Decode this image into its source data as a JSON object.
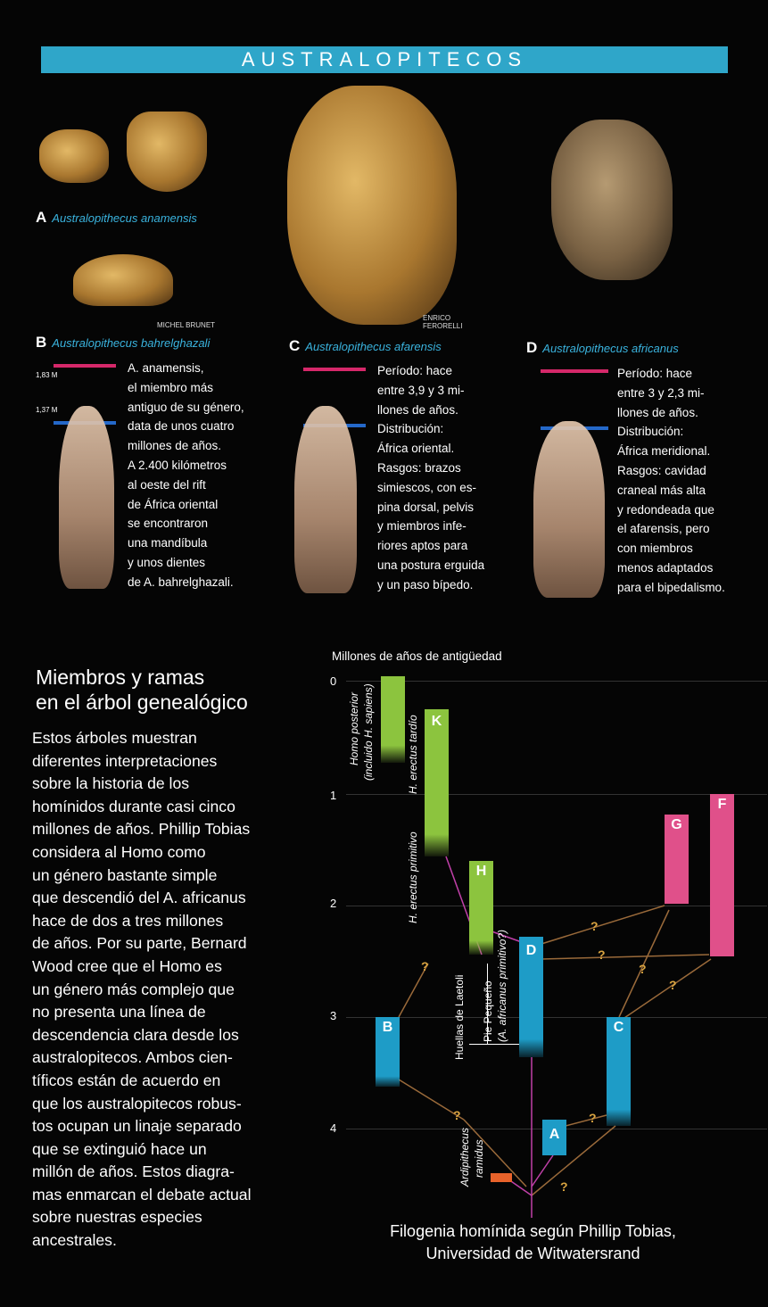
{
  "banner": "AUSTRALOPITECOS",
  "specimens": {
    "a": {
      "letter": "A",
      "name": "Australopithecus anamensis"
    },
    "b": {
      "letter": "B",
      "name": "Australopithecus bahrelghazali"
    },
    "c": {
      "letter": "C",
      "name": "Australopithecus afarensis"
    },
    "d": {
      "letter": "D",
      "name": "Australopithecus africanus"
    }
  },
  "credits": {
    "brunet": "MICHEL BRUNET",
    "ferorelli_1": "ENRICO",
    "ferorelli_2": "FERORELLI"
  },
  "heights": {
    "tall": "1,83 M",
    "short": "1,37 M"
  },
  "colors": {
    "banner": "#2fa6c9",
    "magenta": "#d6286a",
    "blue": "#2468c9",
    "green": "#8cc43e",
    "cyan": "#1e9cc7",
    "pink": "#e0508a",
    "orange": "#e8622a"
  },
  "desc_b": [
    "A. anamensis,",
    "el miembro más",
    "antiguo de su género,",
    "data de unos cuatro",
    "millones de años.",
    "A 2.400 kilómetros",
    "al oeste del rift",
    "de África oriental",
    "se encontraron",
    "una mandíbula",
    "y unos dientes",
    "de A. bahrelghazali."
  ],
  "desc_c": [
    "Período: hace",
    "entre 3,9 y 3 mi-",
    "llones de años.",
    "Distribución:",
    "África oriental.",
    "Rasgos: brazos",
    "simiescos, con es-",
    "pina dorsal, pelvis",
    "y miembros infe-",
    "riores aptos para",
    "una postura erguida",
    "y un paso bípedo."
  ],
  "desc_d": [
    "Período: hace",
    "entre 3 y 2,3 mi-",
    "llones de años.",
    "Distribución:",
    "África meridional.",
    "Rasgos: cavidad",
    "craneal más alta",
    "y redondeada que",
    "el afarensis, pero",
    "con miembros",
    "menos adaptados",
    "para el bipedalismo."
  ],
  "left": {
    "heading_1": "Miembros y ramas",
    "heading_2": "en el árbol genealógico",
    "body": [
      "Estos árboles muestran",
      "diferentes interpretaciones",
      "sobre la historia de los",
      "homínidos durante casi cinco",
      "millones de años. Phillip Tobias",
      "considera al Homo como",
      "un género bastante simple",
      "que descendió del A. africanus",
      "hace de dos a tres millones",
      "de años. Por su parte, Bernard",
      "Wood cree que el Homo es",
      "un género más complejo que",
      "no presenta una línea de",
      "descendencia clara desde los",
      "australopitecos. Ambos cien-",
      "tíficos están de acuerdo en",
      "que los australopitecos robus-",
      "tos ocupan un linaje separado",
      "que se extinguió hace un",
      "millón de años. Estos diagra-",
      "mas enmarcan el debate actual",
      "sobre nuestras especies",
      "ancestrales."
    ]
  },
  "graph": {
    "axis_title": "Millones de años de antigüedad",
    "ticks": [
      "0",
      "1",
      "2",
      "3",
      "4"
    ],
    "bars": {
      "K": "K",
      "H": "H",
      "D": "D",
      "B": "B",
      "C": "C",
      "A": "A",
      "G": "G",
      "F": "F"
    },
    "labels": {
      "homo_posterior": "Homo posterior",
      "homo_posterior_2": "(incluido H. sapiens)",
      "erectus_tardio": "H. erectus tardío",
      "erectus_primitivo": "H. erectus primitivo",
      "huellas": "Huellas de Laetoli",
      "pie_pequeno": "Pie Pequeño",
      "pie_pequeno_2": "(A. africanus primitivo?)",
      "ardipithecus": "Ardipithecus",
      "ramidus": "ramidus"
    },
    "question": "?",
    "caption_1": "Filogenia homínida según Phillip Tobias,",
    "caption_2": "Universidad de Witwatersrand"
  }
}
